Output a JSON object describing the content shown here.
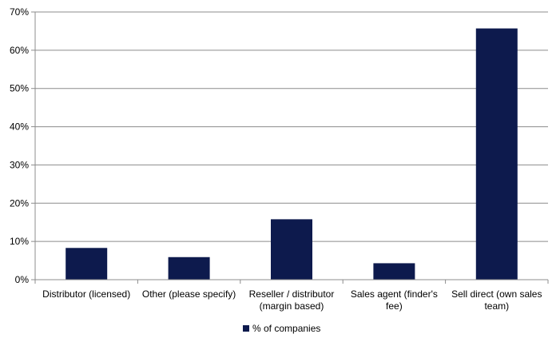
{
  "chart_data": {
    "type": "bar",
    "categories": [
      [
        "Distributor (licensed)"
      ],
      [
        "Other (please specify)"
      ],
      [
        "Reseller / distributor",
        "(margin based)"
      ],
      [
        "Sales agent (finder's",
        "fee)"
      ],
      [
        "Sell direct (own sales",
        "team)"
      ]
    ],
    "series": [
      {
        "name": "% of companies",
        "values": [
          8.3,
          5.9,
          15.8,
          4.3,
          65.7
        ],
        "color": "#0d1a4d"
      }
    ],
    "y_ticks": [
      "0%",
      "10%",
      "20%",
      "30%",
      "40%",
      "50%",
      "60%",
      "70%"
    ],
    "ylim": [
      0,
      70
    ],
    "y_step": 10,
    "grid": true,
    "legend_position": "bottom"
  }
}
